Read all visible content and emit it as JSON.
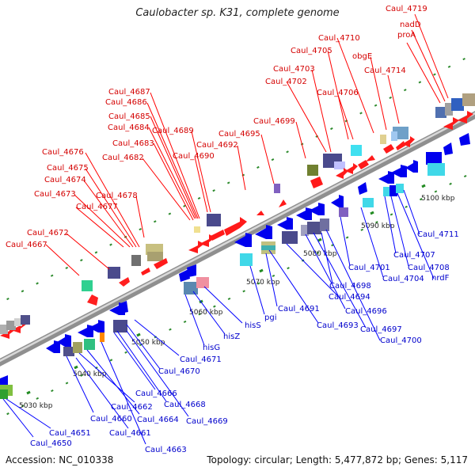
{
  "title": "Caulobacter sp. K31, complete genome",
  "footer": {
    "accession": "Accession: NC_010338",
    "topology": "Topology: circular; Length: 5,477,872 bp; Genes: 5,117"
  },
  "colors": {
    "forward_label": "#d40000",
    "reverse_label": "#0000cc",
    "forward_arrow": "#ff0000",
    "reverse_arrow": "#0000ff",
    "backbone": "#999999",
    "tick": "#228b22"
  },
  "scale_labels": [
    "5030 kbp",
    "5040 kbp",
    "5050 kbp",
    "5060 kbp",
    "5070 kbp",
    "5080 kbp",
    "5090 kbp",
    "5100 kbp"
  ],
  "forward_genes": [
    "Caul_4667",
    "Caul_4672",
    "Caul_4677",
    "Caul_4673",
    "Caul_4678",
    "Caul_4674",
    "Caul_4675",
    "Caul_4676",
    "Caul_4682",
    "Caul_4683",
    "Caul_4690",
    "Caul_4684",
    "Caul_4685",
    "Caul_4689",
    "Caul_4686",
    "Caul_4687",
    "Caul_4692",
    "Caul_4695",
    "Caul_4699",
    "Caul_4702",
    "Caul_4703",
    "Caul_4706",
    "Caul_4705",
    "Caul_4710",
    "obgE",
    "Caul_4714",
    "proA",
    "nadD",
    "Caul_4719"
  ],
  "reverse_genes": [
    "Caul_4650",
    "Caul_4651",
    "Caul_4661",
    "Caul_4660",
    "Caul_4663",
    "Caul_4662",
    "Caul_4664",
    "Caul_4669",
    "Caul_4666",
    "Caul_4668",
    "Caul_4670",
    "Caul_4671",
    "hisG",
    "hisZ",
    "hisS",
    "pgi",
    "Caul_4691",
    "Caul_4693",
    "Caul_4694",
    "Caul_4696",
    "Caul_4697",
    "Caul_4698",
    "Caul_4700",
    "Caul_4701",
    "Caul_4704",
    "Caul_4707",
    "Caul_4708",
    "nrdF",
    "Caul_4711"
  ]
}
